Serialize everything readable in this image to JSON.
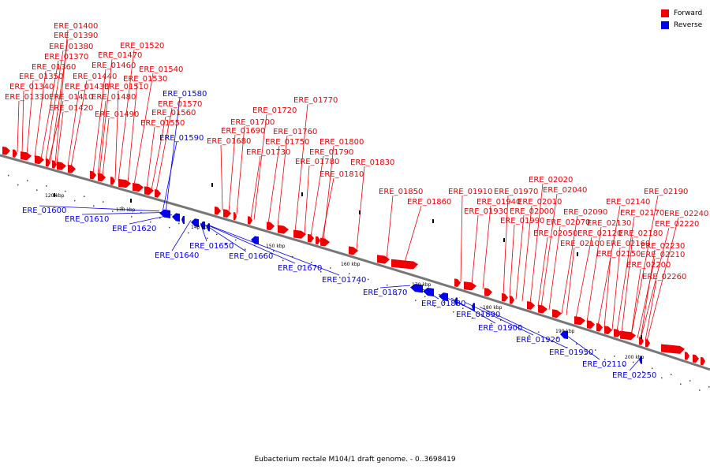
{
  "title": "Eubacterium rectale M104/1 draft genome. - 0..3698419",
  "legend": [
    {
      "label": "Forward",
      "color": "#ee0000"
    },
    {
      "label": "Reverse",
      "color": "#0000ee"
    }
  ],
  "colors": {
    "forward": "#ee0000",
    "reverse": "#0000ee",
    "backbone": "#888888"
  },
  "ticks": [
    "120 kbp",
    "130 kbp",
    "140 kbp",
    "150 kbp",
    "160 kbp",
    "170 kbp",
    "180 kbp",
    "190 kbp",
    "200 kbp"
  ],
  "forward_genes": [
    "ERE_01330",
    "ERE_01340",
    "ERE_01350",
    "ERE_01360",
    "ERE_01370",
    "ERE_01380",
    "ERE_01390",
    "ERE_01400",
    "ERE_01410",
    "ERE_01420",
    "ERE_01430",
    "ERE_01440",
    "ERE_01460",
    "ERE_01470",
    "ERE_01480",
    "ERE_01490",
    "ERE_01510",
    "ERE_01520",
    "ERE_01530",
    "ERE_01540",
    "ERE_01550",
    "ERE_01560",
    "ERE_01570",
    "ERE_01680",
    "ERE_01690",
    "ERE_01700",
    "ERE_01720",
    "ERE_01730",
    "ERE_01750",
    "ERE_01760",
    "ERE_01770",
    "ERE_01780",
    "ERE_01790",
    "ERE_01800",
    "ERE_01810",
    "ERE_01830",
    "ERE_01850",
    "ERE_01860",
    "ERE_01910",
    "ERE_01930",
    "ERE_01940",
    "ERE_01970",
    "ERE_01990",
    "ERE_02000",
    "ERE_02010",
    "ERE_02020",
    "ERE_02040",
    "ERE_02050",
    "ERE_02070",
    "ERE_02090",
    "ERE_02100",
    "ERE_02120",
    "ERE_02130",
    "ERE_02140",
    "ERE_02150",
    "ERE_02160",
    "ERE_02170",
    "ERE_02180",
    "ERE_02190",
    "ERE_02200",
    "ERE_02210",
    "ERE_02220",
    "ERE_02230",
    "ERE_02240",
    "ERE_02260"
  ],
  "reverse_genes": [
    "ERE_01580",
    "ERE_01590",
    "ERE_01600",
    "ERE_01610",
    "ERE_01620",
    "ERE_01640",
    "ERE_01650",
    "ERE_01660",
    "ERE_01670",
    "ERE_01740",
    "ERE_01870",
    "ERE_01880",
    "ERE_01890",
    "ERE_01900",
    "ERE_01920",
    "ERE_01950",
    "ERE_02110",
    "ERE_02250"
  ]
}
